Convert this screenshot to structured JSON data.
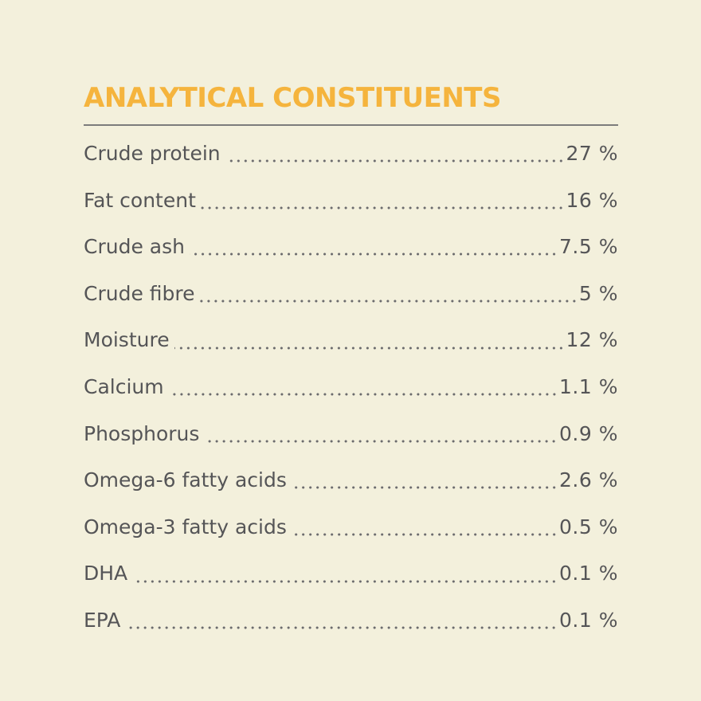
{
  "title": "ANALYTICAL CONSTITUENTS",
  "colors": {
    "background": "#f3f0dc",
    "title": "#f5b43d",
    "text": "#555557",
    "rule": "#7c7c7c"
  },
  "constituents": [
    {
      "label": "Crude protein",
      "value": "27 %"
    },
    {
      "label": "Fat content",
      "value": "16 %"
    },
    {
      "label": "Crude ash",
      "value": "7.5 %"
    },
    {
      "label": "Crude fibre",
      "value": "5 %"
    },
    {
      "label": "Moisture",
      "value": "12 %"
    },
    {
      "label": "Calcium",
      "value": "1.1 %"
    },
    {
      "label": "Phosphorus",
      "value": "0.9 %"
    },
    {
      "label": "Omega-6 fatty acids",
      "value": "2.6 %"
    },
    {
      "label": "Omega-3 fatty acids",
      "value": "0.5 %"
    },
    {
      "label": "DHA",
      "value": "0.1 %"
    },
    {
      "label": "EPA",
      "value": "0.1 %"
    }
  ]
}
